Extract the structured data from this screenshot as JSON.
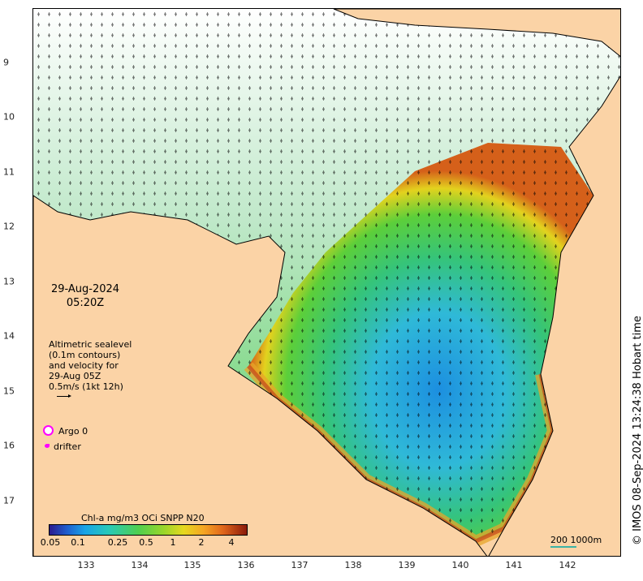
{
  "map": {
    "date": "29-Aug-2024",
    "time": "05:20Z",
    "altimetry_lines": [
      "Altimetric sealevel",
      "(0.1m contours)",
      "and velocity for",
      "29-Aug 05Z",
      "0.5m/s (1kt 12h)"
    ],
    "argo_label": "Argo 0",
    "drifter_label": "drifter",
    "colorbar_title": "Chl-a mg/m3 OCi SNPP N20",
    "colorbar_ticks": [
      "0.05",
      "0.1",
      "0.25",
      "0.5",
      "1",
      "2",
      "4"
    ],
    "scale_label": "200  1000m",
    "credit": "© IMOS 08-Sep-2024 13:24:38 Hobart time",
    "lon_ticks": [
      "133",
      "134",
      "135",
      "136",
      "137",
      "138",
      "139",
      "140",
      "141",
      "142"
    ],
    "lat_ticks": [
      "9",
      "10",
      "11",
      "12",
      "13",
      "14",
      "15",
      "16",
      "17"
    ],
    "colors": {
      "land": "#fbd3a6",
      "argo": "#ff00ff",
      "drifter": "#ff00ff",
      "scale": "#3ab3a6"
    }
  }
}
